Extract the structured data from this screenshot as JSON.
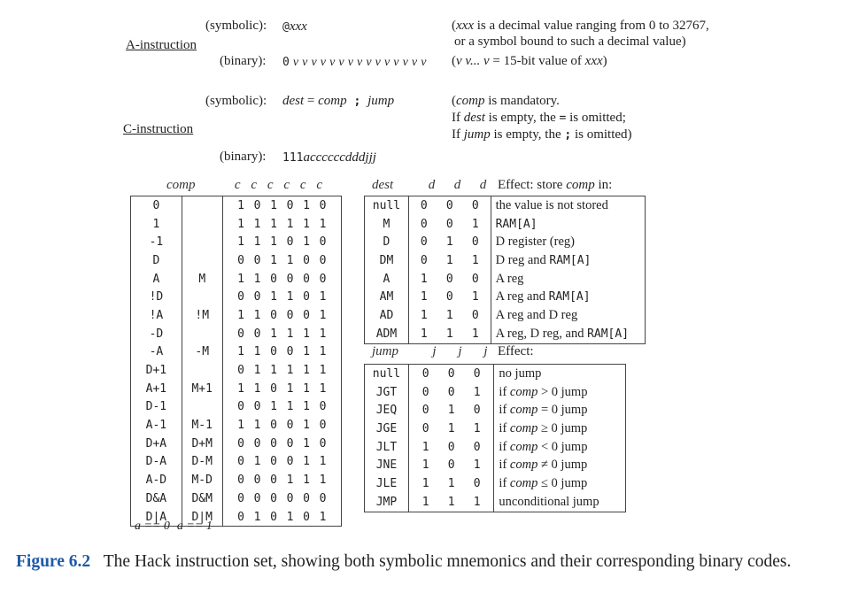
{
  "a_instruction": {
    "label": "A-instruction",
    "sym_label": "(symbolic):",
    "sym_value_prefix": "@",
    "sym_value_var": "xxx",
    "sym_note_line1_pre": "(",
    "sym_note_var": "xxx",
    "sym_note_line1_post": " is a decimal value ranging from 0 to 32767,",
    "sym_note_line2": "or a symbol bound to such a decimal value)",
    "bin_label": "(binary):",
    "bin_value_zero": "0",
    "bin_value_bits": "v v v v v v v v v v v v v v v",
    "bin_note_pre": "(",
    "bin_note_v": "v v... v",
    "bin_note_mid": " = 15-bit value of ",
    "bin_note_var": "xxx",
    "bin_note_post": ")"
  },
  "c_instruction": {
    "label": "C-instruction",
    "sym_label": "(symbolic):",
    "sym_dest": "dest",
    "sym_eq": " = ",
    "sym_comp": "comp",
    "sym_semi": " ; ",
    "sym_jump": "jump",
    "note1_pre": "(",
    "note1_var": "comp",
    "note1_post": " is mandatory.",
    "note2_pre": "If ",
    "note2_var": "dest",
    "note2_mid": " is empty, the ",
    "note2_code": "=",
    "note2_post": " is omitted;",
    "note3_pre": "If ",
    "note3_var": "jump",
    "note3_mid": " is empty, the ",
    "note3_code": ";",
    "note3_post": " is omitted)",
    "bin_label": "(binary):",
    "bin_prefix": "111",
    "bin_rest": "accccccdddjjj"
  },
  "comp_table": {
    "header_comp": "comp",
    "header_bits": [
      "c",
      "c",
      "c",
      "c",
      "c",
      "c"
    ],
    "rows": [
      {
        "a0": "0",
        "a1": "",
        "bits": [
          "1",
          "0",
          "1",
          "0",
          "1",
          "0"
        ]
      },
      {
        "a0": "1",
        "a1": "",
        "bits": [
          "1",
          "1",
          "1",
          "1",
          "1",
          "1"
        ]
      },
      {
        "a0": "-1",
        "a1": "",
        "bits": [
          "1",
          "1",
          "1",
          "0",
          "1",
          "0"
        ]
      },
      {
        "a0": "D",
        "a1": "",
        "bits": [
          "0",
          "0",
          "1",
          "1",
          "0",
          "0"
        ]
      },
      {
        "a0": "A",
        "a1": "M",
        "bits": [
          "1",
          "1",
          "0",
          "0",
          "0",
          "0"
        ]
      },
      {
        "a0": "!D",
        "a1": "",
        "bits": [
          "0",
          "0",
          "1",
          "1",
          "0",
          "1"
        ]
      },
      {
        "a0": "!A",
        "a1": "!M",
        "bits": [
          "1",
          "1",
          "0",
          "0",
          "0",
          "1"
        ]
      },
      {
        "a0": "-D",
        "a1": "",
        "bits": [
          "0",
          "0",
          "1",
          "1",
          "1",
          "1"
        ]
      },
      {
        "a0": "-A",
        "a1": "-M",
        "bits": [
          "1",
          "1",
          "0",
          "0",
          "1",
          "1"
        ]
      },
      {
        "a0": "D+1",
        "a1": "",
        "bits": [
          "0",
          "1",
          "1",
          "1",
          "1",
          "1"
        ]
      },
      {
        "a0": "A+1",
        "a1": "M+1",
        "bits": [
          "1",
          "1",
          "0",
          "1",
          "1",
          "1"
        ]
      },
      {
        "a0": "D-1",
        "a1": "",
        "bits": [
          "0",
          "0",
          "1",
          "1",
          "1",
          "0"
        ]
      },
      {
        "a0": "A-1",
        "a1": "M-1",
        "bits": [
          "1",
          "1",
          "0",
          "0",
          "1",
          "0"
        ]
      },
      {
        "a0": "D+A",
        "a1": "D+M",
        "bits": [
          "0",
          "0",
          "0",
          "0",
          "1",
          "0"
        ]
      },
      {
        "a0": "D-A",
        "a1": "D-M",
        "bits": [
          "0",
          "1",
          "0",
          "0",
          "1",
          "1"
        ]
      },
      {
        "a0": "A-D",
        "a1": "M-D",
        "bits": [
          "0",
          "0",
          "0",
          "1",
          "1",
          "1"
        ]
      },
      {
        "a0": "D&A",
        "a1": "D&M",
        "bits": [
          "0",
          "0",
          "0",
          "0",
          "0",
          "0"
        ]
      },
      {
        "a0": "D|A",
        "a1": "D|M",
        "bits": [
          "0",
          "1",
          "0",
          "1",
          "0",
          "1"
        ]
      }
    ],
    "footer_a0": "a == 0",
    "footer_a1": "a == 1"
  },
  "dest_table": {
    "header_dest": "dest",
    "header_bits": [
      "d",
      "d",
      "d"
    ],
    "header_effect_pre": "Effect: store ",
    "header_effect_var": "comp",
    "header_effect_post": " in:",
    "rows": [
      {
        "mn": "null",
        "bits": [
          "0",
          "0",
          "0"
        ],
        "effect": [
          {
            "t": "the value is not stored",
            "k": "s"
          }
        ]
      },
      {
        "mn": "M",
        "bits": [
          "0",
          "0",
          "1"
        ],
        "effect": [
          {
            "t": "RAM[A]",
            "k": "m"
          }
        ]
      },
      {
        "mn": "D",
        "bits": [
          "0",
          "1",
          "0"
        ],
        "effect": [
          {
            "t": "D register (reg)",
            "k": "s"
          }
        ]
      },
      {
        "mn": "DM",
        "bits": [
          "0",
          "1",
          "1"
        ],
        "effect": [
          {
            "t": "D reg and ",
            "k": "s"
          },
          {
            "t": "RAM[A]",
            "k": "m"
          }
        ]
      },
      {
        "mn": "A",
        "bits": [
          "1",
          "0",
          "0"
        ],
        "effect": [
          {
            "t": "A reg",
            "k": "s"
          }
        ]
      },
      {
        "mn": "AM",
        "bits": [
          "1",
          "0",
          "1"
        ],
        "effect": [
          {
            "t": "A reg and ",
            "k": "s"
          },
          {
            "t": "RAM[A]",
            "k": "m"
          }
        ]
      },
      {
        "mn": "AD",
        "bits": [
          "1",
          "1",
          "0"
        ],
        "effect": [
          {
            "t": "A reg and D reg",
            "k": "s"
          }
        ]
      },
      {
        "mn": "ADM",
        "bits": [
          "1",
          "1",
          "1"
        ],
        "effect": [
          {
            "t": "A reg, D reg, and ",
            "k": "s"
          },
          {
            "t": "RAM[A]",
            "k": "m"
          }
        ]
      }
    ]
  },
  "jump_table": {
    "header_jump": "jump",
    "header_bits": [
      "j",
      "j",
      "j"
    ],
    "header_effect": "Effect:",
    "rows": [
      {
        "mn": "null",
        "bits": [
          "0",
          "0",
          "0"
        ],
        "effect": [
          {
            "t": "no jump",
            "k": "s"
          }
        ]
      },
      {
        "mn": "JGT",
        "bits": [
          "0",
          "0",
          "1"
        ],
        "effect": [
          {
            "t": "if ",
            "k": "s"
          },
          {
            "t": "comp",
            "k": "i"
          },
          {
            "t": " > 0 jump",
            "k": "s"
          }
        ]
      },
      {
        "mn": "JEQ",
        "bits": [
          "0",
          "1",
          "0"
        ],
        "effect": [
          {
            "t": "if ",
            "k": "s"
          },
          {
            "t": "comp",
            "k": "i"
          },
          {
            "t": " = 0 jump",
            "k": "s"
          }
        ]
      },
      {
        "mn": "JGE",
        "bits": [
          "0",
          "1",
          "1"
        ],
        "effect": [
          {
            "t": "if ",
            "k": "s"
          },
          {
            "t": "comp",
            "k": "i"
          },
          {
            "t": " ≥ 0 jump",
            "k": "s"
          }
        ]
      },
      {
        "mn": "JLT",
        "bits": [
          "1",
          "0",
          "0"
        ],
        "effect": [
          {
            "t": "if ",
            "k": "s"
          },
          {
            "t": "comp",
            "k": "i"
          },
          {
            "t": " < 0 jump",
            "k": "s"
          }
        ]
      },
      {
        "mn": "JNE",
        "bits": [
          "1",
          "0",
          "1"
        ],
        "effect": [
          {
            "t": "if ",
            "k": "s"
          },
          {
            "t": "comp",
            "k": "i"
          },
          {
            "t": " ≠ 0 jump",
            "k": "s"
          }
        ]
      },
      {
        "mn": "JLE",
        "bits": [
          "1",
          "1",
          "0"
        ],
        "effect": [
          {
            "t": "if ",
            "k": "s"
          },
          {
            "t": "comp",
            "k": "i"
          },
          {
            "t": " ≤ 0 jump",
            "k": "s"
          }
        ]
      },
      {
        "mn": "JMP",
        "bits": [
          "1",
          "1",
          "1"
        ],
        "effect": [
          {
            "t": "unconditional jump",
            "k": "s"
          }
        ]
      }
    ]
  },
  "caption": {
    "label": "Figure 6.2",
    "text": "The Hack instruction set, showing both symbolic mnemonics and their corresponding binary codes."
  },
  "colors": {
    "caption_accent": "#1f5aa8",
    "text": "#222222",
    "rule": "#444444"
  }
}
